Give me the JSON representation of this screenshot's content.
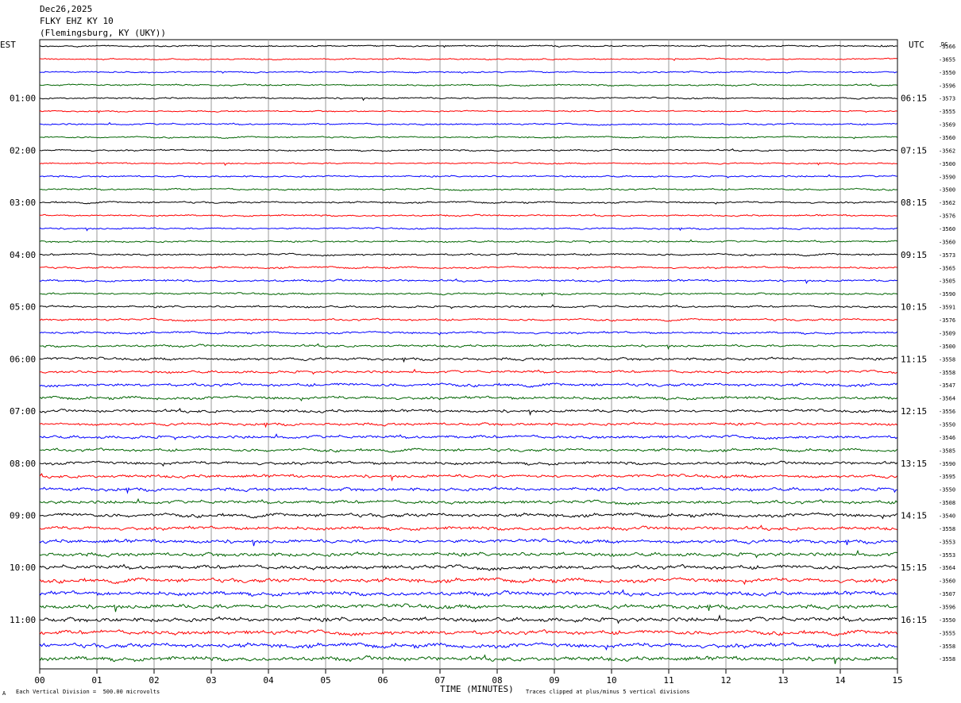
{
  "header": {
    "date": "Dec26,2025",
    "station": "FLKY EHZ KY 10",
    "location": "(Flemingsburg, KY (UKY))"
  },
  "left_tz": "EST",
  "right_tz": "UTC",
  "dc_label": "DC",
  "footer": {
    "scale_note": "Each Vertical Division =  500.00 microvolts",
    "corner_mark": "A",
    "xaxis_title": "TIME (MINUTES)",
    "clip_note": "Traces clipped at plus/minus 5 vertical divisions"
  },
  "chart_data": {
    "type": "line",
    "title": "FLKY EHZ KY 10",
    "xlabel": "TIME (MINUTES)",
    "xlim": [
      0,
      15
    ],
    "x_ticks": [
      "00",
      "01",
      "02",
      "03",
      "04",
      "05",
      "06",
      "07",
      "08",
      "09",
      "10",
      "11",
      "12",
      "13",
      "14",
      "15"
    ],
    "grid": "vertical lines each minute",
    "trace_colors": [
      "#000000",
      "#ff0000",
      "#0000ff",
      "#006400"
    ],
    "rows_per_hour": 4,
    "row_count": 48,
    "left_hour_labels": [
      "01:00",
      "02:00",
      "03:00",
      "04:00",
      "05:00",
      "06:00",
      "07:00",
      "08:00",
      "09:00",
      "10:00",
      "11:00"
    ],
    "right_hour_labels": [
      "06:15",
      "07:15",
      "08:15",
      "09:15",
      "10:15",
      "11:15",
      "12:15",
      "13:15",
      "14:15",
      "15:15",
      "16:15"
    ],
    "dc_offsets": [
      "-3566",
      "-3655",
      "-3550",
      "-3596",
      "-3573",
      "-3555",
      "-3569",
      "-3560",
      "-3562",
      "-3500",
      "-3590",
      "-3500",
      "-3562",
      "-3576",
      "-3560",
      "-3560",
      "-3573",
      "-3565",
      "-3505",
      "-3590",
      "-3591",
      "-3576",
      "-3509",
      "-3500",
      "-3558",
      "-3558",
      "-3547",
      "-3564",
      "-3556",
      "-3550",
      "-3546",
      "-3585",
      "-3590",
      "-3595",
      "-3550",
      "-3508",
      "-3540",
      "-3558",
      "-3553",
      "-3553",
      "-3564",
      "-3560",
      "-3507",
      "-3596",
      "-3550",
      "-3555",
      "-3558",
      "-3558"
    ],
    "activity": [
      0.22,
      0.2,
      0.22,
      0.24,
      0.24,
      0.2,
      0.24,
      0.22,
      0.24,
      0.22,
      0.24,
      0.26,
      0.26,
      0.24,
      0.24,
      0.26,
      0.28,
      0.28,
      0.3,
      0.28,
      0.3,
      0.3,
      0.32,
      0.34,
      0.4,
      0.38,
      0.44,
      0.44,
      0.42,
      0.4,
      0.44,
      0.42,
      0.44,
      0.46,
      0.5,
      0.48,
      0.52,
      0.5,
      0.54,
      0.56,
      0.58,
      0.6,
      0.6,
      0.62,
      0.62,
      0.6,
      0.64,
      0.62
    ]
  }
}
